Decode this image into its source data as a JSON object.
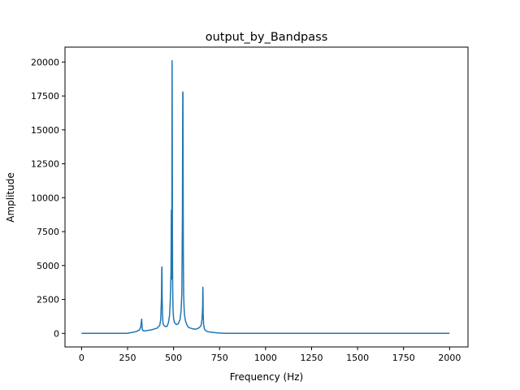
{
  "chart_data": {
    "type": "line",
    "title": "output_by_Bandpass",
    "xlabel": "Frequency (Hz)",
    "ylabel": "Amplitude",
    "xlim": [
      -90,
      2100
    ],
    "ylim": [
      -1000,
      21100
    ],
    "x_ticks": [
      0,
      250,
      500,
      750,
      1000,
      1250,
      1500,
      1750,
      2000
    ],
    "x_tick_labels": [
      "0",
      "250",
      "500",
      "750",
      "1000",
      "1250",
      "1500",
      "1750",
      "2000"
    ],
    "y_ticks": [
      0,
      2500,
      5000,
      7500,
      10000,
      12500,
      15000,
      17500,
      20000
    ],
    "y_tick_labels": [
      "0",
      "2500",
      "5000",
      "7500",
      "10000",
      "12500",
      "15000",
      "17500",
      "20000"
    ],
    "grid": false,
    "series_color": "#1f77b4",
    "series": [
      {
        "x": [
          0,
          250,
          260,
          280,
          300,
          315,
          322,
          326,
          327,
          328,
          330,
          335,
          350,
          380,
          410,
          425,
          430,
          434,
          436,
          437,
          438,
          440,
          443,
          447,
          455,
          465,
          472,
          478,
          482,
          486,
          488,
          489,
          490,
          492,
          493,
          494,
          495,
          497,
          500,
          505,
          515,
          525,
          535,
          541,
          545,
          548,
          550,
          551,
          552,
          553,
          555,
          557,
          560,
          565,
          572,
          580,
          600,
          620,
          640,
          650,
          655,
          658,
          659,
          660,
          661,
          663,
          668,
          680,
          700,
          740,
          770,
          780,
          1000,
          1500,
          2000
        ],
        "y": [
          0,
          0,
          40,
          80,
          150,
          260,
          500,
          1000,
          1050,
          700,
          300,
          180,
          200,
          260,
          380,
          600,
          1000,
          2500,
          4800,
          4900,
          2700,
          1300,
          700,
          600,
          500,
          520,
          800,
          1300,
          2400,
          4500,
          9100,
          6500,
          4000,
          20100,
          15000,
          7000,
          3500,
          1800,
          1100,
          800,
          650,
          700,
          1000,
          1700,
          3000,
          8500,
          17800,
          17700,
          12000,
          6000,
          2800,
          1900,
          1300,
          900,
          650,
          450,
          350,
          300,
          420,
          600,
          1100,
          2000,
          3400,
          3000,
          1400,
          700,
          300,
          150,
          90,
          30,
          10,
          0,
          0,
          0,
          0
        ]
      }
    ]
  }
}
